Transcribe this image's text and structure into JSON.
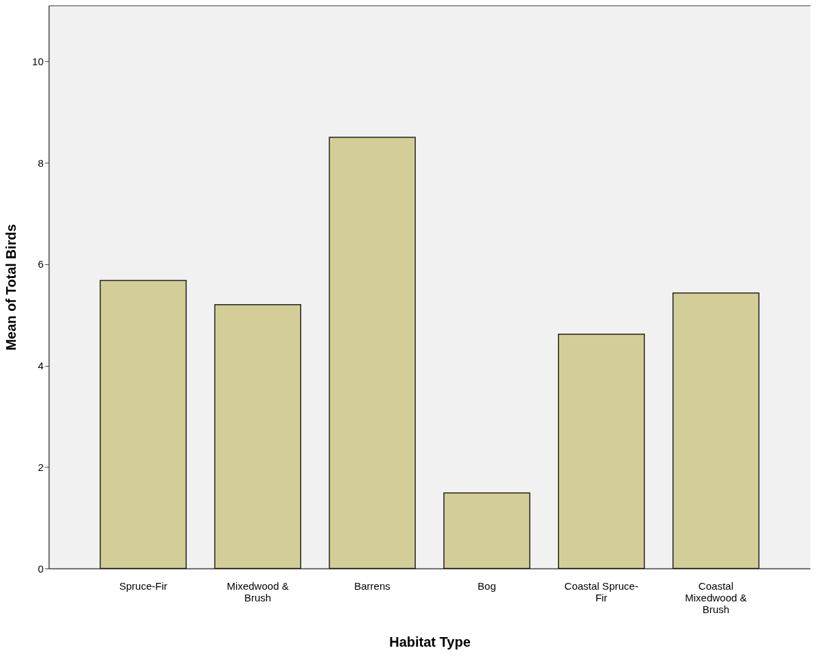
{
  "chart_data": {
    "type": "bar",
    "xlabel": "Habitat Type",
    "ylabel": "Mean of Total Birds",
    "categories": [
      "Spruce-Fir",
      "Mixedwood & Brush",
      "Barrens",
      "Bog",
      "Coastal Spruce-Fir",
      "Coastal Mixedwood & Brush"
    ],
    "values": [
      5.68,
      5.2,
      8.5,
      1.49,
      4.62,
      5.43
    ],
    "color": "#d3ce97",
    "ylim": [
      0,
      11.1
    ],
    "yticks": [
      0,
      2,
      4,
      6,
      8,
      10
    ],
    "grid": false
  }
}
